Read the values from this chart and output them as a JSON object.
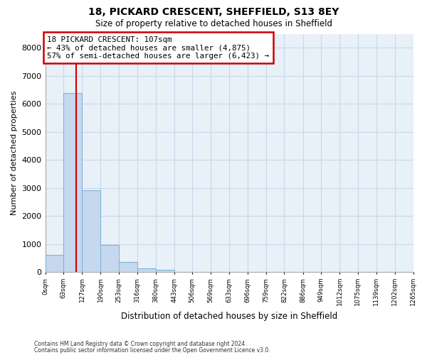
{
  "title1": "18, PICKARD CRESCENT, SHEFFIELD, S13 8EY",
  "title2": "Size of property relative to detached houses in Sheffield",
  "xlabel": "Distribution of detached houses by size in Sheffield",
  "ylabel": "Number of detached properties",
  "footnote1": "Contains HM Land Registry data © Crown copyright and database right 2024.",
  "footnote2": "Contains public sector information licensed under the Open Government Licence v3.0.",
  "property_label": "18 PICKARD CRESCENT: 107sqm",
  "annotation_line1": "← 43% of detached houses are smaller (4,875)",
  "annotation_line2": "57% of semi-detached houses are larger (6,423) →",
  "property_size_sqm": 107,
  "bin_edges": [
    0,
    63,
    127,
    190,
    253,
    316,
    380,
    443,
    506,
    569,
    633,
    696,
    759,
    822,
    886,
    949,
    1012,
    1075,
    1139,
    1202,
    1265
  ],
  "bin_labels": [
    "0sqm",
    "63sqm",
    "127sqm",
    "190sqm",
    "253sqm",
    "316sqm",
    "380sqm",
    "443sqm",
    "506sqm",
    "569sqm",
    "633sqm",
    "696sqm",
    "759sqm",
    "822sqm",
    "886sqm",
    "949sqm",
    "1012sqm",
    "1075sqm",
    "1139sqm",
    "1202sqm",
    "1265sqm"
  ],
  "bar_counts": [
    620,
    6380,
    2920,
    960,
    360,
    140,
    75,
    0,
    0,
    0,
    0,
    0,
    0,
    0,
    0,
    0,
    0,
    0,
    0,
    0
  ],
  "bar_color": "#c5d8ed",
  "bar_edge_color": "#7aafd4",
  "property_line_color": "#cc0000",
  "annotation_box_color": "#cc0000",
  "ylim": [
    0,
    8500
  ],
  "yticks": [
    0,
    1000,
    2000,
    3000,
    4000,
    5000,
    6000,
    7000,
    8000
  ],
  "grid_color": "#c8d8ea",
  "plot_bg_color": "#e8f0f8"
}
